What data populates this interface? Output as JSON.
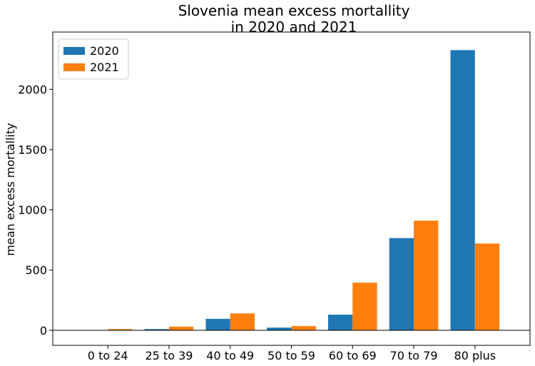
{
  "chart_data": {
    "type": "bar",
    "title": "Slovenia mean excess mortallity\nin 2020 and 2021",
    "title_lines": [
      "Slovenia mean excess mortallity",
      "in 2020 and 2021"
    ],
    "xlabel": "",
    "ylabel": "mean excess mortallity",
    "categories": [
      "0 to 24",
      "25 to 39",
      "40 to 49",
      "50 to 59",
      "60 to 69",
      "70 to 79",
      "80 plus"
    ],
    "series": [
      {
        "name": "2020",
        "color": "#1f77b4",
        "values": [
          0,
          10,
          95,
          22,
          130,
          765,
          2325
        ]
      },
      {
        "name": "2021",
        "color": "#ff7f0e",
        "values": [
          10,
          30,
          140,
          35,
          395,
          910,
          720
        ]
      }
    ],
    "ylim": [
      -125,
      2475
    ],
    "yticks": [
      0,
      500,
      1000,
      1500,
      2000
    ],
    "zero_line": true,
    "legend_position": "top-left",
    "grid": false
  }
}
